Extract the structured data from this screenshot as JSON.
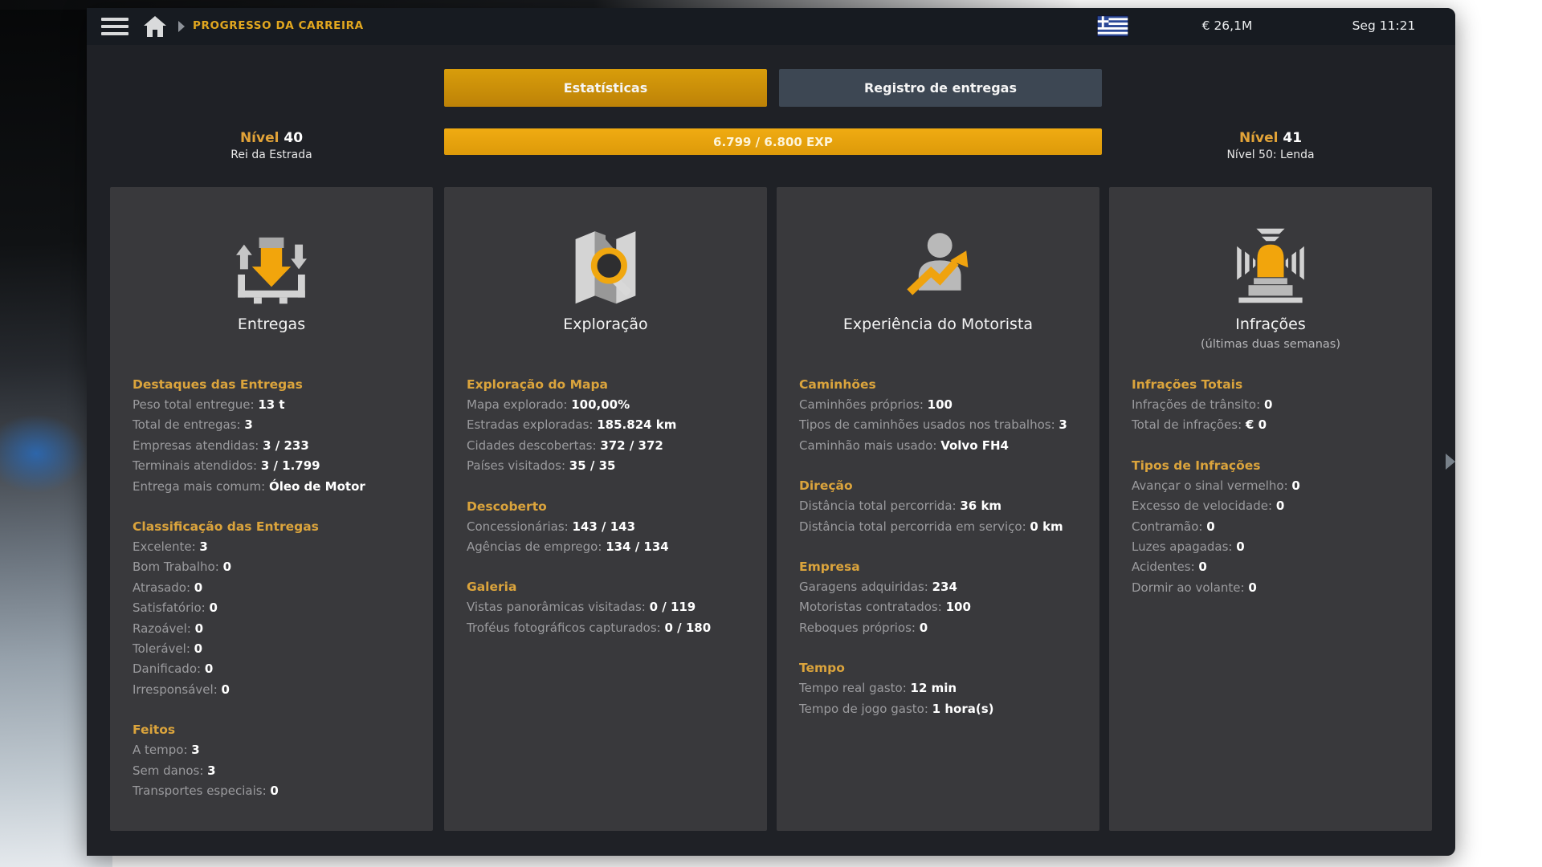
{
  "topbar": {
    "breadcrumb": "PROGRESSO DA CARREIRA",
    "money": "€ 26,1M",
    "time": "Seg 11:21",
    "flag": "greece-flag"
  },
  "tabs": [
    {
      "label": "Estatísticas",
      "active": true
    },
    {
      "label": "Registro de entregas",
      "active": false
    }
  ],
  "level": {
    "left": {
      "label": "Nível",
      "value": "40",
      "subtitle": "Rei da Estrada"
    },
    "right": {
      "label": "Nível",
      "value": "41",
      "subtitle": "Nível 50: Lenda"
    },
    "exp": {
      "text": "6.799 / 6.800 EXP",
      "current": 6799,
      "max": 6800
    }
  },
  "colors": {
    "accent_gold": "#dba43c",
    "tab_active": "#cd8d08",
    "exp_bar": "#e7a40e",
    "card_bg": "#39393c",
    "panel_bg": "#1f2126"
  },
  "cards": [
    {
      "title": "Entregas",
      "subtitle": "",
      "icon": "cargo-delivery-icon",
      "sections": [
        {
          "header": "Destaques das Entregas",
          "items": [
            {
              "label": "Peso total entregue:",
              "value": "13 t"
            },
            {
              "label": "Total de entregas:",
              "value": "3"
            },
            {
              "label": "Empresas atendidas:",
              "value": "3 / 233"
            },
            {
              "label": "Terminais atendidos:",
              "value": "3 / 1.799"
            },
            {
              "label": "Entrega mais comum:",
              "value": "Óleo de Motor"
            }
          ]
        },
        {
          "header": "Classificação das Entregas",
          "items": [
            {
              "label": "Excelente:",
              "value": "3"
            },
            {
              "label": "Bom Trabalho:",
              "value": "0"
            },
            {
              "label": "Atrasado:",
              "value": "0"
            },
            {
              "label": "Satisfatório:",
              "value": "0"
            },
            {
              "label": "Razoável:",
              "value": "0"
            },
            {
              "label": "Tolerável:",
              "value": "0"
            },
            {
              "label": "Danificado:",
              "value": "0"
            },
            {
              "label": "Irresponsável:",
              "value": "0"
            }
          ]
        },
        {
          "header": "Feitos",
          "items": [
            {
              "label": "A tempo:",
              "value": "3"
            },
            {
              "label": "Sem danos:",
              "value": "3"
            },
            {
              "label": "Transportes especiais:",
              "value": "0"
            }
          ]
        }
      ]
    },
    {
      "title": "Exploração",
      "subtitle": "",
      "icon": "map-exploration-icon",
      "sections": [
        {
          "header": "Exploração do Mapa",
          "items": [
            {
              "label": "Mapa explorado:",
              "value": "100,00%"
            },
            {
              "label": "Estradas exploradas:",
              "value": "185.824 km"
            },
            {
              "label": "Cidades descobertas:",
              "value": "372 / 372"
            },
            {
              "label": "Países visitados:",
              "value": "35 / 35"
            }
          ]
        },
        {
          "header": "Descoberto",
          "items": [
            {
              "label": "Concessionárias:",
              "value": "143 / 143"
            },
            {
              "label": "Agências de emprego:",
              "value": "134 / 134"
            }
          ]
        },
        {
          "header": "Galeria",
          "items": [
            {
              "label": "Vistas panorâmicas visitadas:",
              "value": "0 / 119"
            },
            {
              "label": "Troféus fotográficos capturados:",
              "value": "0 / 180"
            }
          ]
        }
      ]
    },
    {
      "title": "Experiência do Motorista",
      "subtitle": "",
      "icon": "driver-experience-icon",
      "sections": [
        {
          "header": "Caminhões",
          "items": [
            {
              "label": "Caminhões próprios:",
              "value": "100"
            },
            {
              "label": "Tipos de caminhões usados nos trabalhos:",
              "value": "3"
            },
            {
              "label": "Caminhão mais usado:",
              "value": "Volvo FH4"
            }
          ]
        },
        {
          "header": "Direção",
          "items": [
            {
              "label": "Distância total percorrida:",
              "value": "36 km"
            },
            {
              "label": "Distância total percorrida em serviço:",
              "value": "0 km"
            }
          ]
        },
        {
          "header": "Empresa",
          "items": [
            {
              "label": "Garagens adquiridas:",
              "value": "234"
            },
            {
              "label": "Motoristas contratados:",
              "value": "100"
            },
            {
              "label": "Reboques próprios:",
              "value": "0"
            }
          ]
        },
        {
          "header": "Tempo",
          "items": [
            {
              "label": "Tempo real gasto:",
              "value": "12 min"
            },
            {
              "label": "Tempo de jogo gasto:",
              "value": "1 hora(s)"
            }
          ]
        }
      ]
    },
    {
      "title": "Infrações",
      "subtitle": "(últimas duas semanas)",
      "icon": "siren-offences-icon",
      "sections": [
        {
          "header": "Infrações Totais",
          "items": [
            {
              "label": "Infrações de trânsito:",
              "value": "0"
            },
            {
              "label": "Total de infrações:",
              "value": "€ 0"
            }
          ]
        },
        {
          "header": "Tipos de Infrações",
          "items": [
            {
              "label": "Avançar o sinal vermelho:",
              "value": "0"
            },
            {
              "label": "Excesso de velocidade:",
              "value": "0"
            },
            {
              "label": "Contramão:",
              "value": "0"
            },
            {
              "label": "Luzes apagadas:",
              "value": "0"
            },
            {
              "label": "Acidentes:",
              "value": "0"
            },
            {
              "label": "Dormir ao volante:",
              "value": "0"
            }
          ]
        }
      ]
    }
  ]
}
